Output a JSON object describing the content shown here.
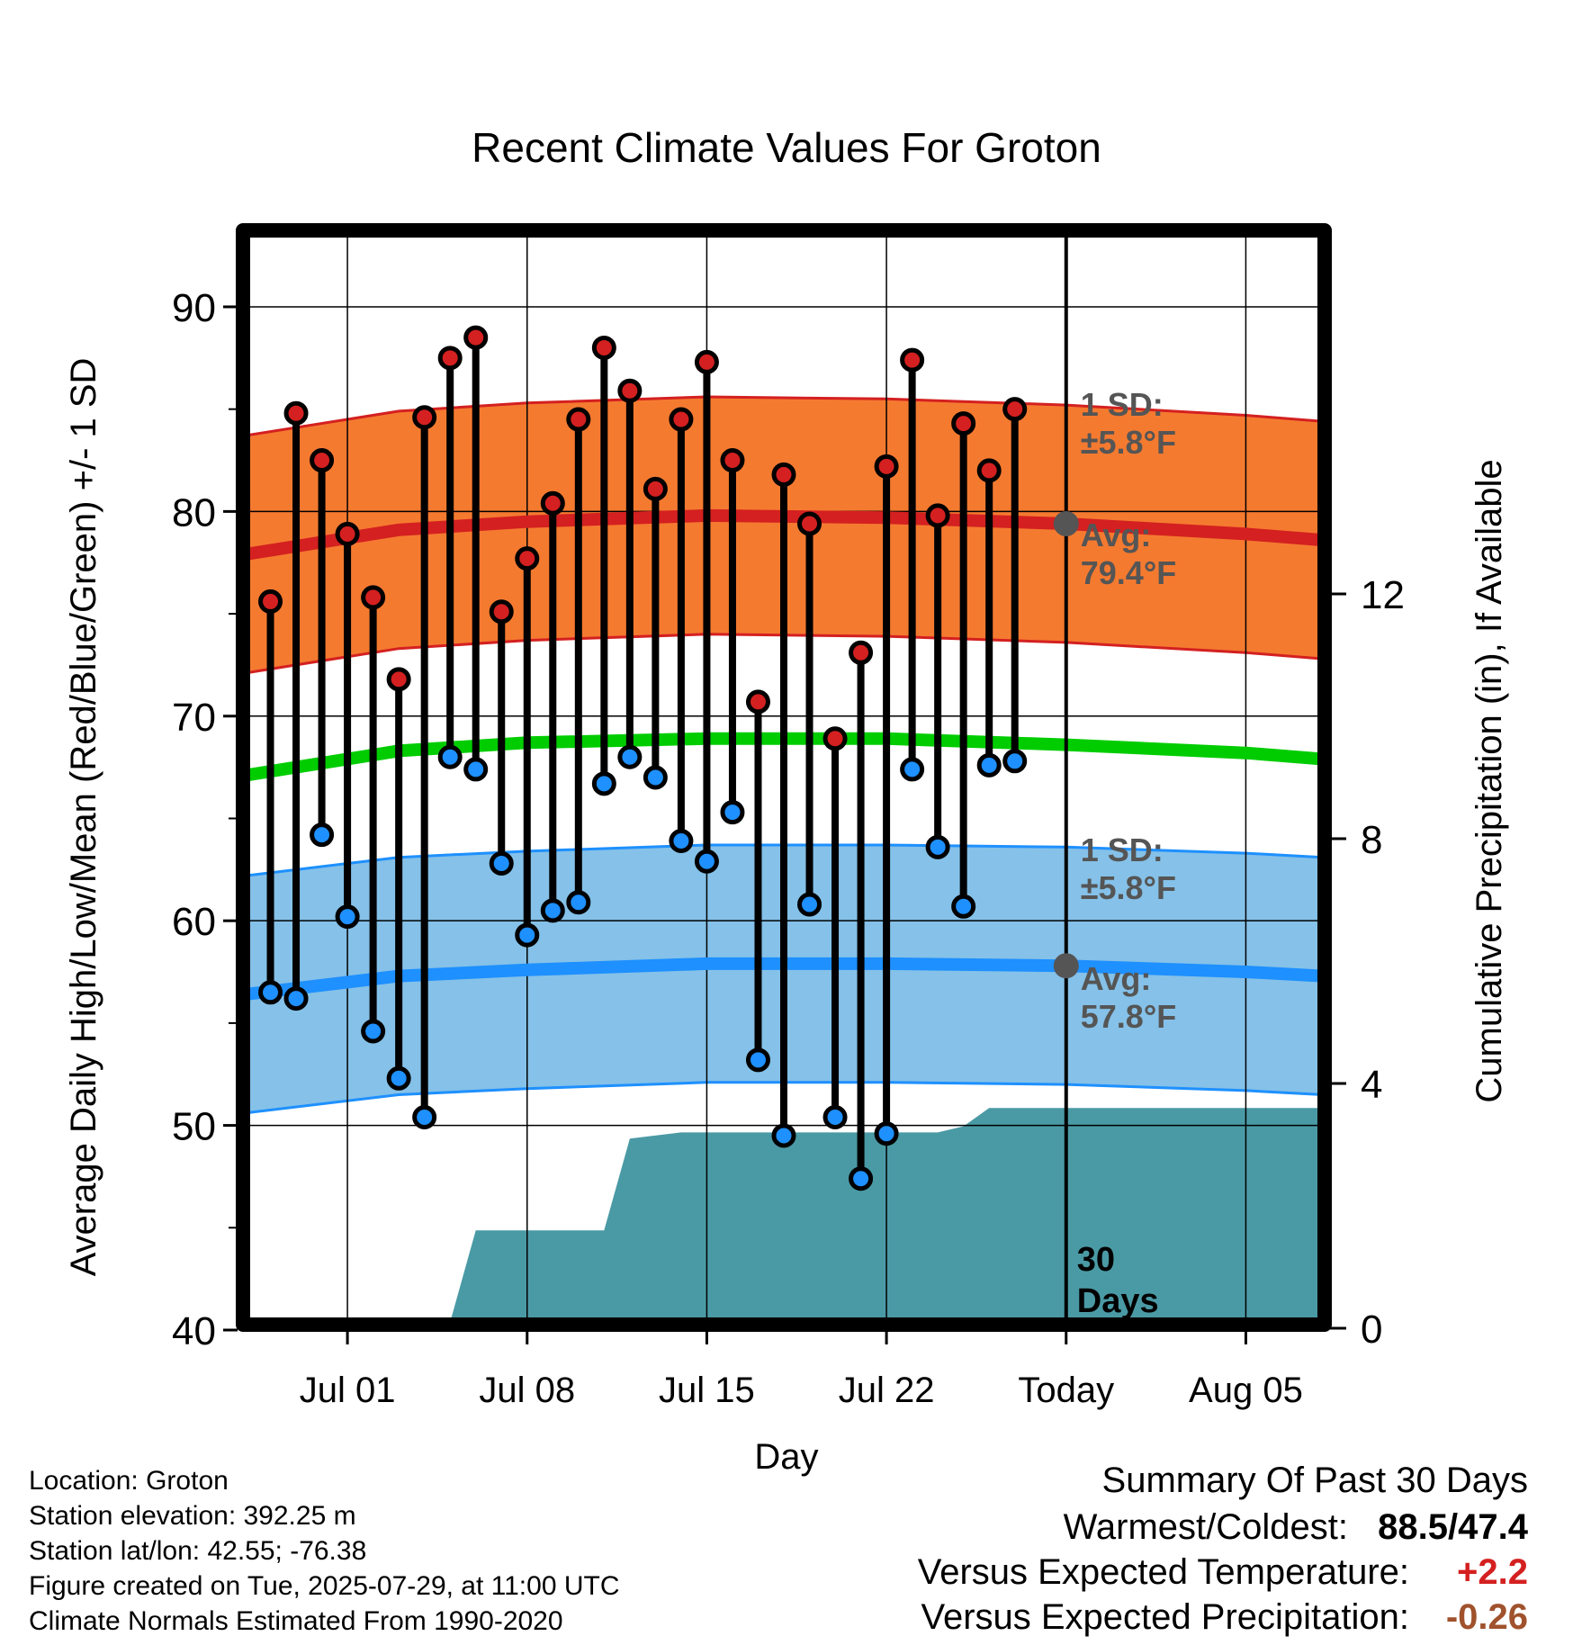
{
  "chart_data": {
    "type": "line",
    "title": "Recent Climate Values For Groton",
    "xlabel": "Day",
    "ylabel": "Average Daily High/Low/Mean (Red/Blue/Green) +/- 1 SD",
    "y2label": "Cumulative Precipitation (in), If Available",
    "ylim": [
      40,
      94
    ],
    "y2lim": [
      0,
      18
    ],
    "yticks": [
      40,
      50,
      60,
      70,
      80,
      90
    ],
    "y2ticks": [
      0,
      4,
      8,
      12
    ],
    "xlim": [
      "2025-06-27",
      "2025-08-08"
    ],
    "xticks": [
      {
        "date": "2025-07-01",
        "label": "Jul 01"
      },
      {
        "date": "2025-07-08",
        "label": "Jul 08"
      },
      {
        "date": "2025-07-15",
        "label": "Jul 15"
      },
      {
        "date": "2025-07-22",
        "label": "Jul 22"
      },
      {
        "date": "2025-07-29",
        "label": "Today"
      },
      {
        "date": "2025-08-05",
        "label": "Aug 05"
      }
    ],
    "grid": true,
    "today": "2025-07-29",
    "today_label": "30 Days",
    "colors": {
      "high_band": "#f47a30",
      "high_line": "#d42020",
      "mean_line": "#00cc00",
      "low_band": "#85c1e8",
      "low_line": "#1e90ff",
      "precip": "#4a9aa5",
      "high_dot": "#d42020",
      "low_dot": "#1e90ff",
      "warm_value": "#d42020",
      "precip_value": "#a0522d",
      "annotation": "#555555"
    },
    "normals": {
      "dates": [
        "2025-06-27",
        "2025-07-03",
        "2025-07-08",
        "2025-07-15",
        "2025-07-22",
        "2025-07-29",
        "2025-08-05",
        "2025-08-08"
      ],
      "high_avg": [
        77.9,
        79.1,
        79.5,
        79.8,
        79.7,
        79.4,
        78.9,
        78.6
      ],
      "high_sd": 5.8,
      "mean_avg": [
        67.1,
        68.3,
        68.7,
        68.9,
        68.9,
        68.6,
        68.2,
        67.9
      ],
      "low_avg": [
        56.4,
        57.3,
        57.6,
        57.9,
        57.9,
        57.8,
        57.5,
        57.3
      ],
      "low_sd": 5.8
    },
    "daily": [
      {
        "date": "2025-06-28",
        "high": 75.6,
        "low": 56.5
      },
      {
        "date": "2025-06-29",
        "high": 84.8,
        "low": 56.2
      },
      {
        "date": "2025-06-30",
        "high": 82.5,
        "low": 64.2
      },
      {
        "date": "2025-07-01",
        "high": 78.9,
        "low": 60.2
      },
      {
        "date": "2025-07-02",
        "high": 75.8,
        "low": 54.6
      },
      {
        "date": "2025-07-03",
        "high": 71.8,
        "low": 52.3
      },
      {
        "date": "2025-07-04",
        "high": 84.6,
        "low": 50.4
      },
      {
        "date": "2025-07-05",
        "high": 87.5,
        "low": 68.0
      },
      {
        "date": "2025-07-06",
        "high": 88.5,
        "low": 67.4
      },
      {
        "date": "2025-07-07",
        "high": 75.1,
        "low": 62.8
      },
      {
        "date": "2025-07-08",
        "high": 77.7,
        "low": 59.3
      },
      {
        "date": "2025-07-09",
        "high": 80.4,
        "low": 60.5
      },
      {
        "date": "2025-07-10",
        "high": 84.5,
        "low": 60.9
      },
      {
        "date": "2025-07-11",
        "high": 88.0,
        "low": 66.7
      },
      {
        "date": "2025-07-12",
        "high": 85.9,
        "low": 68.0
      },
      {
        "date": "2025-07-13",
        "high": 81.1,
        "low": 67.0
      },
      {
        "date": "2025-07-14",
        "high": 84.5,
        "low": 63.9
      },
      {
        "date": "2025-07-15",
        "high": 87.3,
        "low": 62.9
      },
      {
        "date": "2025-07-16",
        "high": 82.5,
        "low": 65.3
      },
      {
        "date": "2025-07-17",
        "high": 70.7,
        "low": 53.2
      },
      {
        "date": "2025-07-18",
        "high": 81.8,
        "low": 49.5
      },
      {
        "date": "2025-07-19",
        "high": 79.4,
        "low": 60.8
      },
      {
        "date": "2025-07-20",
        "high": 68.9,
        "low": 50.4
      },
      {
        "date": "2025-07-21",
        "high": 73.1,
        "low": 47.4
      },
      {
        "date": "2025-07-22",
        "high": 82.2,
        "low": 49.6
      },
      {
        "date": "2025-07-23",
        "high": 87.4,
        "low": 67.4
      },
      {
        "date": "2025-07-24",
        "high": 79.8,
        "low": 63.6
      },
      {
        "date": "2025-07-25",
        "high": 84.3,
        "low": 60.7
      },
      {
        "date": "2025-07-26",
        "high": 82.0,
        "low": 67.6
      },
      {
        "date": "2025-07-27",
        "high": 85.0,
        "low": 67.8
      }
    ],
    "precip_cumulative": [
      {
        "date": "2025-06-27",
        "value": 0.0
      },
      {
        "date": "2025-07-01",
        "value": 0.05
      },
      {
        "date": "2025-07-05",
        "value": 0.1
      },
      {
        "date": "2025-07-06",
        "value": 1.6
      },
      {
        "date": "2025-07-11",
        "value": 1.6
      },
      {
        "date": "2025-07-12",
        "value": 3.1
      },
      {
        "date": "2025-07-14",
        "value": 3.2
      },
      {
        "date": "2025-07-24",
        "value": 3.2
      },
      {
        "date": "2025-07-25",
        "value": 3.3
      },
      {
        "date": "2025-07-26",
        "value": 3.6
      },
      {
        "date": "2025-08-08",
        "value": 3.6
      }
    ],
    "annotations": {
      "high_sd": {
        "label": "1 SD:",
        "value": "±5.8°F"
      },
      "high_avg": {
        "label": "Avg:",
        "value": "79.4°F",
        "marker": 79.4
      },
      "low_sd": {
        "label": "1 SD:",
        "value": "±5.8°F"
      },
      "low_avg": {
        "label": "Avg:",
        "value": "57.8°F",
        "marker": 57.8
      }
    }
  },
  "station": {
    "location": "Location: Groton",
    "elevation": "Station elevation: 392.25 m",
    "latlon": "Station lat/lon: 42.55; -76.38",
    "created": "Figure created on Tue, 2025-07-29, at 11:00 UTC",
    "normals": "Climate Normals Estimated From 1990-2020"
  },
  "summary": {
    "heading": "Summary Of Past 30 Days",
    "warm_cold_label": "Warmest/Coldest:",
    "warm_cold_value": "88.5/47.4",
    "temp_label": "Versus Expected Temperature:",
    "temp_value": "+2.2",
    "precip_label": "Versus Expected Precipitation:",
    "precip_value": "-0.26"
  }
}
